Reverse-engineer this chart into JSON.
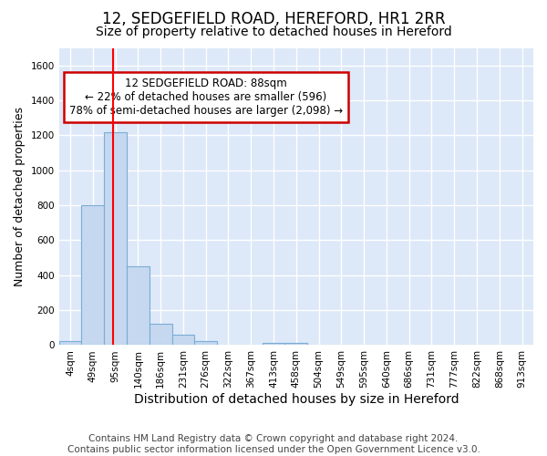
{
  "title": "12, SEDGEFIELD ROAD, HEREFORD, HR1 2RR",
  "subtitle": "Size of property relative to detached houses in Hereford",
  "xlabel": "Distribution of detached houses by size in Hereford",
  "ylabel": "Number of detached properties",
  "footer_line1": "Contains HM Land Registry data © Crown copyright and database right 2024.",
  "footer_line2": "Contains public sector information licensed under the Open Government Licence v3.0.",
  "bin_labels": [
    "4sqm",
    "49sqm",
    "95sqm",
    "140sqm",
    "186sqm",
    "231sqm",
    "276sqm",
    "322sqm",
    "367sqm",
    "413sqm",
    "458sqm",
    "504sqm",
    "549sqm",
    "595sqm",
    "640sqm",
    "686sqm",
    "731sqm",
    "777sqm",
    "822sqm",
    "868sqm",
    "913sqm"
  ],
  "bar_values": [
    25,
    800,
    1220,
    450,
    120,
    60,
    25,
    0,
    0,
    15,
    12,
    0,
    0,
    0,
    0,
    0,
    0,
    0,
    0,
    0,
    0
  ],
  "bar_color": "#c5d8f0",
  "bar_edge_color": "#7aadd4",
  "ylim": [
    0,
    1700
  ],
  "yticks": [
    0,
    200,
    400,
    600,
    800,
    1000,
    1200,
    1400,
    1600
  ],
  "red_line_x": 1.88,
  "annotation_text": "12 SEDGEFIELD ROAD: 88sqm\n← 22% of detached houses are smaller (596)\n78% of semi-detached houses are larger (2,098) →",
  "annotation_box_color": "#ffffff",
  "annotation_box_edge": "#cc0000",
  "bg_color": "#ffffff",
  "plot_bg_color": "#dde8f8",
  "grid_color": "#ffffff",
  "title_fontsize": 12,
  "subtitle_fontsize": 10,
  "xlabel_fontsize": 10,
  "ylabel_fontsize": 9,
  "tick_fontsize": 7.5,
  "footer_fontsize": 7.5,
  "annot_fontsize": 8.5
}
